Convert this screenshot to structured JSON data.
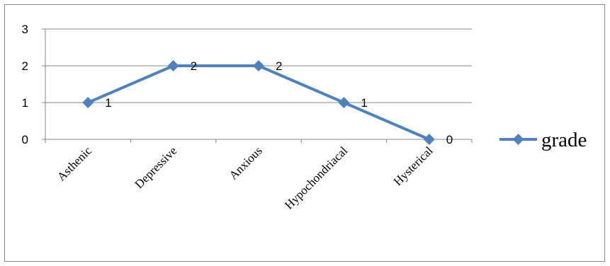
{
  "chart_data": {
    "type": "line",
    "categories": [
      "Asthenic",
      "Depressive",
      "Anxious",
      "Hypochondriacal",
      "Hysterical"
    ],
    "series": [
      {
        "name": "grade",
        "values": [
          1,
          2,
          2,
          1,
          0
        ],
        "color": "#4f81bd",
        "marker": "diamond"
      }
    ],
    "data_labels": [
      "1",
      "2",
      "2",
      "1",
      "0"
    ],
    "y_ticks": [
      "0",
      "1",
      "2",
      "3"
    ],
    "ylim": [
      0,
      3
    ],
    "grid": true,
    "legend": {
      "position": "right"
    },
    "title": "",
    "xlabel": "",
    "ylabel": ""
  }
}
